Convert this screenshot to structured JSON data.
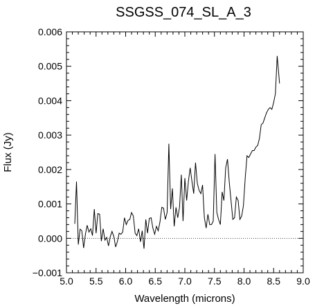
{
  "chart_data": {
    "type": "line",
    "title": "SSGSS_074_SL_A_3",
    "xlabel": "Wavelength (microns)",
    "ylabel": "Flux (Jy)",
    "xlim": [
      5.0,
      9.0
    ],
    "ylim": [
      -0.001,
      0.006
    ],
    "xticks": [
      "5.0",
      "5.5",
      "6.0",
      "6.5",
      "7.0",
      "7.5",
      "8.0",
      "8.5",
      "9.0"
    ],
    "yticks": [
      "−0.001",
      "0.000",
      "0.001",
      "0.002",
      "0.003",
      "0.004",
      "0.005",
      "0.006"
    ],
    "zero_line": "dotted",
    "grid": false,
    "series": [
      {
        "x": [
          5.14,
          5.17,
          5.2,
          5.23,
          5.26,
          5.29,
          5.32,
          5.35,
          5.38,
          5.41,
          5.44,
          5.47,
          5.5,
          5.53,
          5.56,
          5.59,
          5.62,
          5.65,
          5.68,
          5.71,
          5.74,
          5.77,
          5.8,
          5.83,
          5.86,
          5.89,
          5.92,
          5.95,
          5.98,
          6.01,
          6.04,
          6.07,
          6.1,
          6.13,
          6.16,
          6.19,
          6.22,
          6.25,
          6.28,
          6.31,
          6.34,
          6.37,
          6.4,
          6.43,
          6.46,
          6.49,
          6.52,
          6.55,
          6.58,
          6.61,
          6.64,
          6.67,
          6.7,
          6.73,
          6.76,
          6.79,
          6.82,
          6.85,
          6.88,
          6.91,
          6.94,
          6.97,
          7.0,
          7.03,
          7.06,
          7.09,
          7.12,
          7.15,
          7.18,
          7.21,
          7.24,
          7.27,
          7.3,
          7.33,
          7.36,
          7.39,
          7.42,
          7.45,
          7.48,
          7.51,
          7.54,
          7.57,
          7.6,
          7.63,
          7.66,
          7.69,
          7.72,
          7.75,
          7.78,
          7.81,
          7.84,
          7.87,
          7.9,
          7.93,
          7.96,
          7.99,
          8.02,
          8.05,
          8.08,
          8.11,
          8.14,
          8.17,
          8.2,
          8.23,
          8.26,
          8.29,
          8.32,
          8.35,
          8.38,
          8.41,
          8.44,
          8.47,
          8.5,
          8.53,
          8.56,
          8.6
        ],
        "y": [
          0.00042,
          0.00165,
          -0.00018,
          0.00027,
          0.00022,
          -0.00028,
          0.00012,
          0.00038,
          0.00018,
          0.00028,
          8e-05,
          0.00085,
          0.00015,
          0.00072,
          0.0007,
          -8e-05,
          0.00028,
          -5e-05,
          3e-05,
          -0.00022,
          5e-05,
          0.0002,
          6e-05,
          -0.00025,
          -0.0001,
          0.00015,
          0.00012,
          0.00018,
          0.0006,
          0.0004,
          0.00052,
          0.00055,
          0.00075,
          0.00065,
          0.00015,
          8e-05,
          0.00028,
          -0.0001,
          0.00022,
          -0.0003,
          0.00055,
          0.00015,
          0.00058,
          0.0006,
          0.0003,
          0.00012,
          0.00035,
          0.00022,
          0.00048,
          0.0009,
          0.00088,
          0.00055,
          0.00075,
          0.00275,
          0.00085,
          0.00145,
          0.00035,
          0.0009,
          0.0006,
          0.0009,
          0.00185,
          0.0005,
          0.00175,
          0.0011,
          0.00165,
          0.00205,
          0.00165,
          0.0013,
          0.0022,
          0.0016,
          0.0014,
          0.0013,
          0.00155,
          0.0006,
          0.0003,
          0.0007,
          0.0004,
          0.0004,
          0.0005,
          0.00245,
          0.00075,
          0.00055,
          0.0004,
          0.00135,
          0.0011,
          0.00205,
          0.0023,
          0.00165,
          0.0011,
          0.00055,
          0.0006,
          0.0012,
          0.0011,
          0.00055,
          0.00065,
          0.00095,
          0.00175,
          0.0024,
          0.00235,
          0.00245,
          0.00255,
          0.00255,
          0.00265,
          0.0027,
          0.0029,
          0.0033,
          0.00335,
          0.0035,
          0.00365,
          0.00375,
          0.0038,
          0.00375,
          0.00395,
          0.0042,
          0.0053,
          0.0045
        ]
      }
    ]
  }
}
